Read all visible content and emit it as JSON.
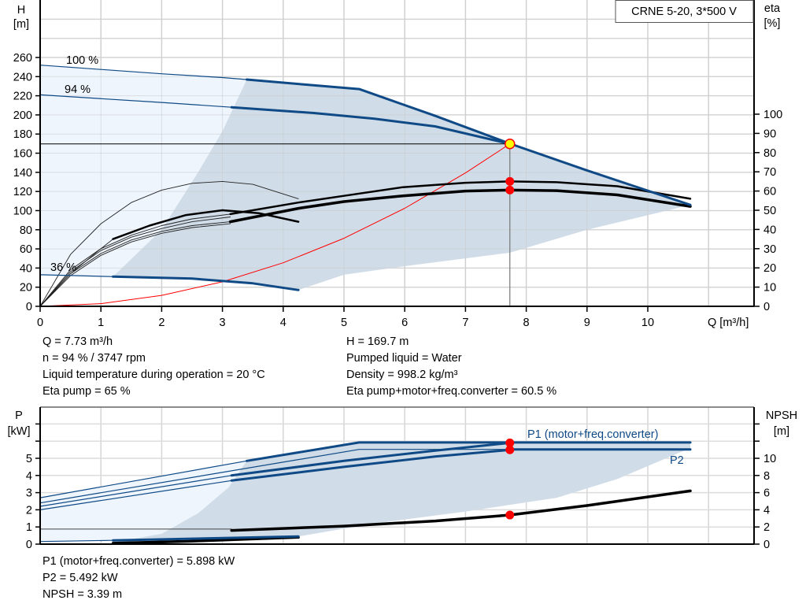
{
  "chart_data": [
    {
      "type": "line",
      "title": "CRNE 5-20, 3*500 V",
      "xlabel": "Q [m³/h]",
      "ylabel": [
        "H",
        "[m]"
      ],
      "y2label": [
        "eta",
        "[%]"
      ],
      "xlim": [
        0,
        11
      ],
      "ylim": [
        0,
        300
      ],
      "y2lim": [
        0,
        100
      ],
      "grid": true,
      "xticks": [
        0,
        1,
        2,
        3,
        4,
        5,
        6,
        7,
        8,
        9,
        10
      ],
      "yticks": [
        0,
        20,
        40,
        60,
        80,
        100,
        120,
        140,
        160,
        180,
        200,
        220,
        240,
        260
      ],
      "y2ticks": [
        0,
        10,
        20,
        30,
        40,
        50,
        60,
        70,
        80,
        90,
        100
      ],
      "curve_labels": [
        "100 %",
        "94 %",
        "36 %"
      ],
      "colors": {
        "head": "#0f4a86",
        "eta": "#000000",
        "system": "#ff0000",
        "area_light": "#eef5fd",
        "area_dark": "#d0dce7"
      },
      "head_curves": [
        {
          "name": "100 %",
          "thin": [
            [
              0,
              252
            ],
            [
              1,
              247.5
            ],
            [
              2,
              243
            ],
            [
              3,
              239
            ],
            [
              3.4,
              237
            ]
          ],
          "thick": [
            [
              3.4,
              237
            ],
            [
              4.3,
              232
            ],
            [
              5.25,
              227
            ],
            [
              6.5,
              199
            ],
            [
              7.73,
              170
            ],
            [
              9,
              142
            ],
            [
              10.7,
              106
            ]
          ]
        },
        {
          "name": "94 %",
          "thin": [
            [
              0,
              221
            ],
            [
              1,
              217
            ],
            [
              2,
              213
            ],
            [
              3.15,
              208
            ]
          ],
          "thick": [
            [
              3.15,
              208
            ],
            [
              4.5,
              202
            ],
            [
              5.5,
              196
            ],
            [
              6.5,
              188
            ],
            [
              7.73,
              169.7
            ]
          ]
        },
        {
          "name": "36 %",
          "thin": [
            [
              0,
              33
            ],
            [
              1.2,
              31
            ]
          ],
          "thick": [
            [
              1.2,
              31
            ],
            [
              2.5,
              29
            ],
            [
              3.5,
              24
            ],
            [
              4.25,
              17
            ]
          ]
        }
      ],
      "eta_curves": [
        {
          "thin": [
            [
              0,
              0
            ],
            [
              0.5,
              19
            ],
            [
              1,
              30
            ],
            [
              1.5,
              37
            ],
            [
              2,
              42
            ],
            [
              2.5,
              45.5
            ],
            [
              3.13,
              48
            ]
          ],
          "thick": [
            [
              3.13,
              48
            ],
            [
              4.25,
              54
            ],
            [
              5,
              57.5
            ],
            [
              5.97,
              62
            ],
            [
              7,
              64.3
            ],
            [
              7.73,
              65
            ],
            [
              8.5,
              64.6
            ],
            [
              9.5,
              62.5
            ],
            [
              10.7,
              56
            ]
          ]
        },
        {
          "thin": [
            [
              0,
              0
            ],
            [
              0.5,
              17
            ],
            [
              1,
              27.5
            ],
            [
              1.5,
              34.5
            ],
            [
              2,
              39
            ],
            [
              2.5,
              42
            ],
            [
              3.13,
              44
            ]
          ],
          "thick": [
            [
              3.13,
              44
            ],
            [
              4.25,
              51
            ],
            [
              5,
              54.5
            ],
            [
              5.97,
              57.5
            ],
            [
              7,
              60
            ],
            [
              7.73,
              60.5
            ],
            [
              8.5,
              60.2
            ],
            [
              9.5,
              58
            ],
            [
              10.7,
              52
            ]
          ]
        },
        {
          "thin": [
            [
              0,
              0
            ],
            [
              0.5,
              18
            ],
            [
              1,
              29
            ],
            [
              1.5,
              36
            ],
            [
              2,
              40.5
            ],
            [
              2.5,
              44
            ],
            [
              3.13,
              46.5
            ]
          ],
          "thick": []
        },
        {
          "thin": [
            [
              0,
              0
            ],
            [
              0.5,
              16
            ],
            [
              1,
              26.5
            ],
            [
              1.5,
              33.5
            ],
            [
              2,
              38
            ],
            [
              2.5,
              41
            ],
            [
              3.13,
              43
            ]
          ],
          "thick": []
        },
        {
          "thin": [
            [
              0,
              0
            ],
            [
              0.5,
              27
            ],
            [
              1,
              43
            ],
            [
              1.5,
              54
            ],
            [
              2,
              60.5
            ],
            [
              2.5,
              64
            ],
            [
              3,
              65
            ],
            [
              3.5,
              63.5
            ],
            [
              4.25,
              56
            ]
          ],
          "thick": []
        },
        {
          "thin": [
            [
              0,
              0
            ],
            [
              0.5,
              17
            ],
            [
              1,
              30
            ],
            [
              1.2,
              35
            ]
          ],
          "thick": [
            [
              1.2,
              35
            ],
            [
              1.8,
              42
            ],
            [
              2.4,
              47.5
            ],
            [
              3,
              50
            ],
            [
              3.6,
              48.5
            ],
            [
              4.25,
              44
            ]
          ]
        }
      ],
      "area_light_top": [
        [
          0,
          252
        ],
        [
          3.4,
          237
        ],
        [
          5.25,
          227
        ],
        [
          7.73,
          170
        ],
        [
          10.7,
          106
        ]
      ],
      "area_bottom": [
        [
          10.7,
          106
        ],
        [
          9,
          80
        ],
        [
          7.73,
          56
        ],
        [
          6,
          42
        ],
        [
          5,
          33
        ],
        [
          4.25,
          17
        ],
        [
          3.5,
          24
        ],
        [
          2.5,
          29
        ],
        [
          1.2,
          31
        ],
        [
          0,
          33
        ]
      ],
      "area_dark_left": [
        [
          1.2,
          31
        ],
        [
          2,
          80
        ],
        [
          2.6,
          140
        ],
        [
          3,
          183
        ],
        [
          3.4,
          237
        ]
      ],
      "system_curve": [
        [
          0,
          0
        ],
        [
          1,
          2.8
        ],
        [
          2,
          11.4
        ],
        [
          3,
          25.6
        ],
        [
          4,
          45.5
        ],
        [
          5,
          71.1
        ],
        [
          6,
          102.4
        ],
        [
          7,
          139.4
        ],
        [
          7.73,
          169.7
        ]
      ],
      "duty_point": {
        "Q": 7.73,
        "H": 169.7,
        "eta_pump": 65,
        "eta_total": 60.5
      }
    },
    {
      "type": "line",
      "ylabel": [
        "P",
        "[kW]"
      ],
      "y2label": [
        "NPSH",
        "[m]"
      ],
      "xlim": [
        0,
        11
      ],
      "ylim": [
        0,
        8
      ],
      "y2lim": [
        0,
        16
      ],
      "grid": true,
      "yticks": [
        0,
        1,
        2,
        3,
        4,
        5
      ],
      "y2ticks": [
        0,
        2,
        4,
        6,
        8,
        10
      ],
      "series_labels": [
        "P1 (motor+freq.converter)",
        "P2"
      ],
      "power_curves": [
        {
          "thin": [
            [
              0,
              2.7
            ],
            [
              3.4,
              4.85
            ]
          ],
          "thick": [
            [
              3.4,
              4.85
            ],
            [
              5.25,
              5.92
            ],
            [
              10.7,
              5.92
            ]
          ]
        },
        {
          "thin": [
            [
              0,
              2.4
            ],
            [
              5.25,
              5.52
            ],
            [
              7.73,
              5.52
            ]
          ],
          "thick": [
            [
              7.73,
              5.52
            ],
            [
              10.7,
              5.52
            ]
          ]
        },
        {
          "thin": [
            [
              0,
              2.2
            ],
            [
              3.15,
              4.0
            ]
          ],
          "thick": [
            [
              3.15,
              4.0
            ],
            [
              5,
              4.85
            ],
            [
              6.5,
              5.45
            ],
            [
              7.73,
              5.898
            ]
          ]
        },
        {
          "thin": [
            [
              0,
              2.0
            ],
            [
              3.15,
              3.7
            ]
          ],
          "thick": [
            [
              3.15,
              3.7
            ],
            [
              5,
              4.5
            ],
            [
              6.5,
              5.1
            ],
            [
              7.73,
              5.492
            ]
          ]
        },
        {
          "thin": [
            [
              0,
              0.15
            ],
            [
              1.2,
              0.22
            ]
          ],
          "thick": [
            [
              1.2,
              0.22
            ],
            [
              4.25,
              0.45
            ]
          ]
        }
      ],
      "npsh_curves": [
        {
          "thin": [
            [
              0,
              1.75
            ],
            [
              3.15,
              1.75
            ]
          ],
          "thick": [
            [
              3.15,
              1.6
            ],
            [
              5,
              2.1
            ],
            [
              6.5,
              2.7
            ],
            [
              7.73,
              3.39
            ],
            [
              9,
              4.5
            ],
            [
              10.7,
              6.2
            ]
          ]
        },
        {
          "thin": [],
          "thick": [
            [
              1.2,
              0.1
            ],
            [
              2.5,
              0.35
            ],
            [
              4.25,
              0.8
            ]
          ]
        }
      ],
      "area_light": [
        [
          0,
          2.7
        ],
        [
          3.4,
          4.85
        ],
        [
          5.25,
          5.92
        ],
        [
          10.7,
          5.92
        ],
        [
          10.7,
          5.6
        ],
        [
          9.5,
          3.8
        ],
        [
          8.5,
          2.7
        ],
        [
          7,
          1.9
        ],
        [
          5.5,
          1.2
        ],
        [
          4.25,
          0.45
        ],
        [
          1.2,
          0.22
        ],
        [
          0,
          0.15
        ]
      ],
      "area_dark": [
        [
          1.2,
          0.1
        ],
        [
          2,
          0.6
        ],
        [
          2.6,
          1.8
        ],
        [
          3.1,
          3.3
        ],
        [
          3.4,
          4.85
        ],
        [
          5.25,
          5.92
        ],
        [
          10.7,
          5.92
        ],
        [
          10.7,
          5.6
        ],
        [
          9.5,
          3.8
        ],
        [
          8.5,
          2.7
        ],
        [
          7,
          1.9
        ],
        [
          5.5,
          1.2
        ],
        [
          4.25,
          0.45
        ]
      ],
      "duty_point": {
        "P1": 5.898,
        "P2": 5.492,
        "NPSH": 3.39
      }
    }
  ],
  "info_top_left": [
    "Q = 7.73 m³/h",
    "n = 94 % / 3747 rpm",
    "Liquid temperature during operation = 20 °C",
    "Eta pump = 65 %"
  ],
  "info_top_right": [
    "H = 169.7 m",
    "Pumped liquid = Water",
    "Density = 998.2 kg/m³",
    "Eta pump+motor+freq.converter = 60.5 %"
  ],
  "info_bottom": [
    "P1 (motor+freq.converter) = 5.898 kW",
    "P2 = 5.492 kW",
    "NPSH = 3.39 m"
  ]
}
